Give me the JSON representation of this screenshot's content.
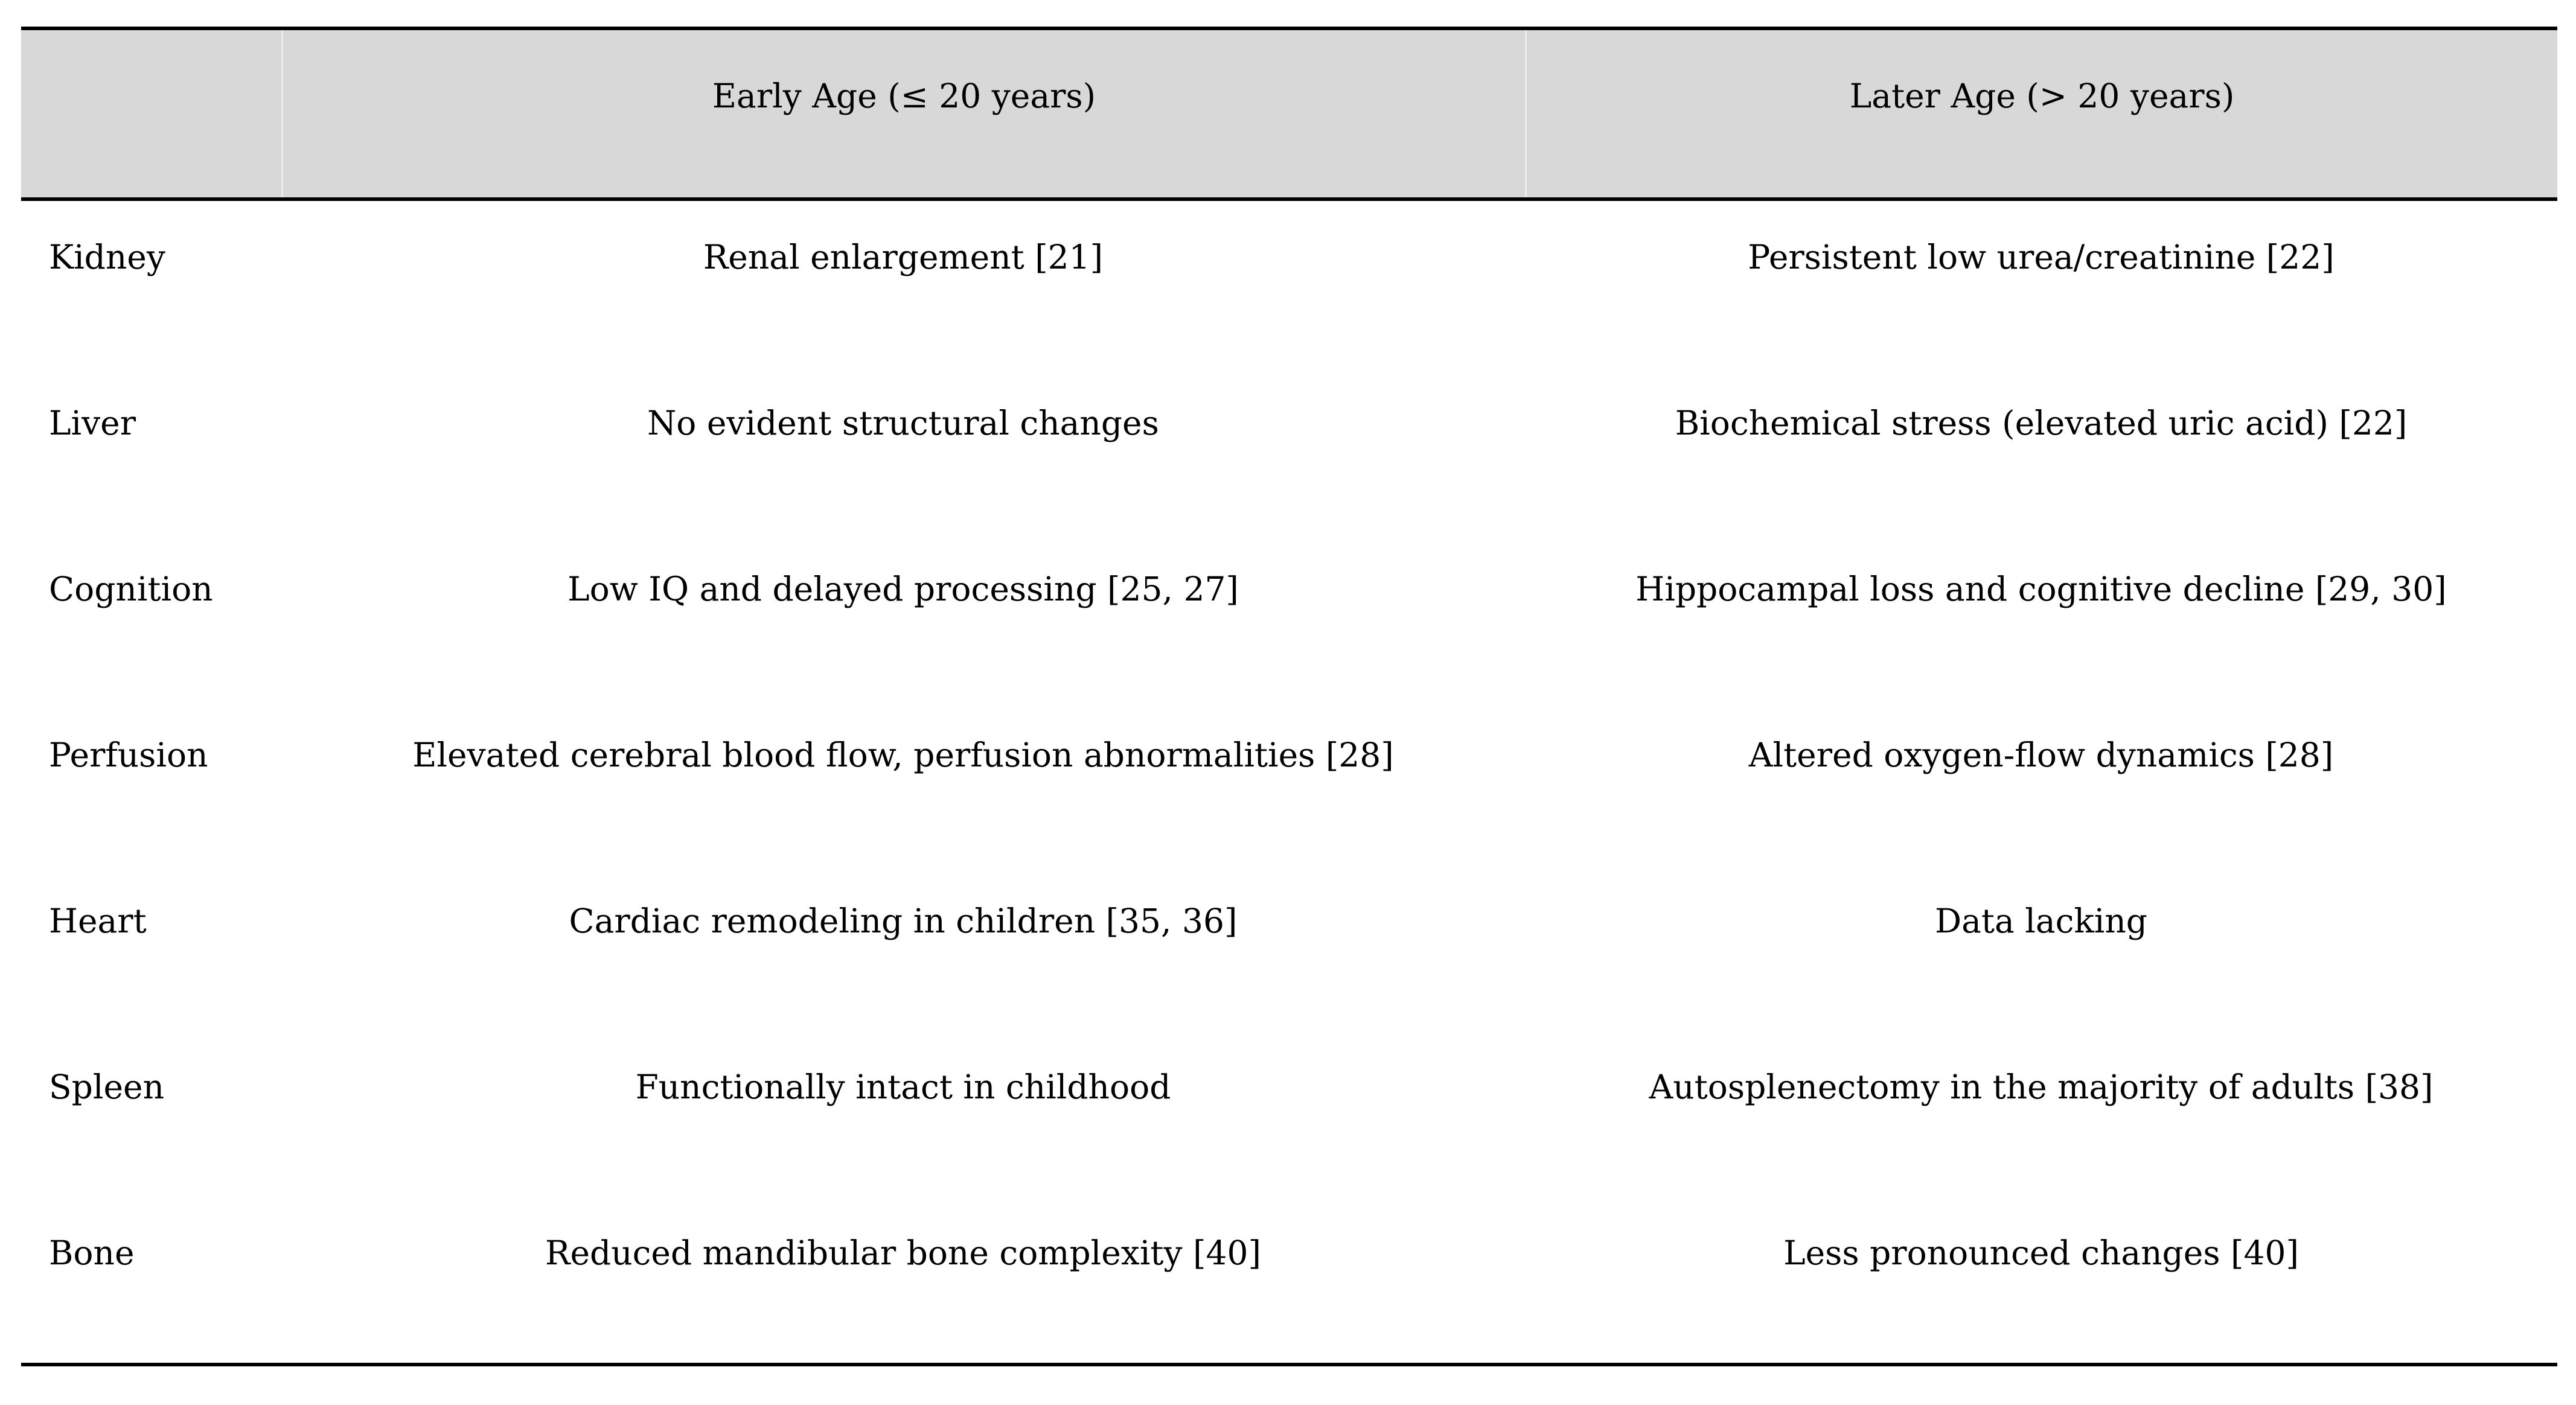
{
  "table": {
    "header": {
      "organ": "",
      "early": "Early Age (≤ 20 years)",
      "later": "Later Age (> 20 years)"
    },
    "rows": [
      {
        "organ": "Kidney",
        "early": "Renal enlargement [21]",
        "later": "Persistent low urea/creatinine [22]"
      },
      {
        "organ": "Liver",
        "early": "No evident structural changes",
        "later": "Biochemical stress (elevated uric acid) [22]"
      },
      {
        "organ": "Cognition",
        "early": "Low IQ and delayed processing [25, 27]",
        "later": "Hippocampal loss and cognitive decline [29, 30]"
      },
      {
        "organ": "Perfusion",
        "early": "Elevated cerebral blood flow, perfusion abnormalities [28]",
        "later": "Altered oxygen-flow dynamics [28]"
      },
      {
        "organ": "Heart",
        "early": "Cardiac remodeling in children [35, 36]",
        "later": "Data lacking"
      },
      {
        "organ": "Spleen",
        "early": "Functionally intact in childhood",
        "later": "Autosplenectomy in the majority of adults [38]"
      },
      {
        "organ": "Bone",
        "early": "Reduced mandibular bone complexity [40]",
        "later": "Less pronounced changes [40]"
      }
    ]
  },
  "colors": {
    "header_bg": "#d8d8d8",
    "border": "#000000",
    "page_bg": "#ffffff",
    "text": "#000000",
    "seam": "#ebebeb"
  }
}
